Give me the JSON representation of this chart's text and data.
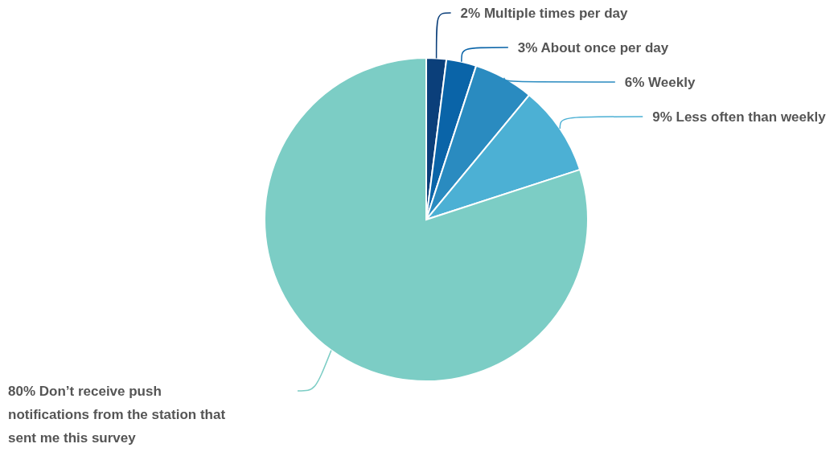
{
  "chart_data": {
    "type": "pie",
    "categories": [
      "Multiple times per day",
      "About once per day",
      "Weekly",
      "Less often than weekly",
      "Don’t receive push notifications from the station that sent me this survey"
    ],
    "values": [
      2,
      3,
      6,
      9,
      80
    ],
    "value_labels": [
      "2%",
      "3%",
      "6%",
      "9%",
      "80%"
    ],
    "colors": [
      "#0b3f7a",
      "#0a64a8",
      "#2a8bc0",
      "#4cb0d4",
      "#7ccdc5"
    ]
  }
}
